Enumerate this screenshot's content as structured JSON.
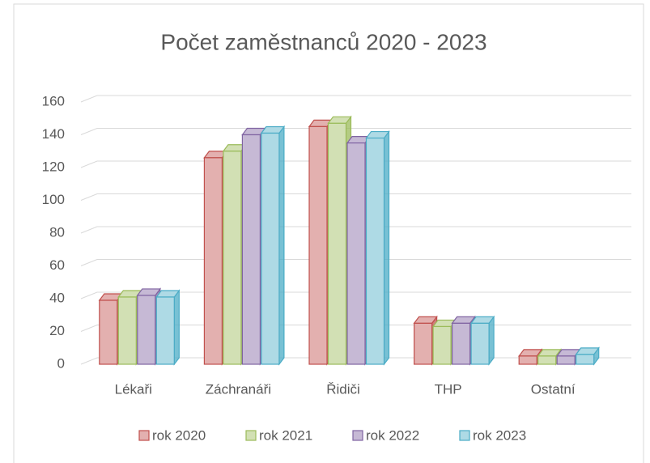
{
  "chart_data": {
    "type": "bar",
    "title": "Počet zaměstnanců 2020 - 2023",
    "categories": [
      "Lékaři",
      "Záchranáři",
      "Řidiči",
      "THP",
      "Ostatní"
    ],
    "series": [
      {
        "name": "rok 2020",
        "color": "#c0504d",
        "values": [
          39,
          126,
          145,
          25,
          5
        ]
      },
      {
        "name": "rok 2021",
        "color": "#9bbb59",
        "values": [
          41,
          130,
          147,
          23,
          5
        ]
      },
      {
        "name": "rok 2022",
        "color": "#8064a2",
        "values": [
          42,
          140,
          135,
          25,
          5
        ]
      },
      {
        "name": "rok 2023",
        "color": "#4bacc6",
        "values": [
          41,
          141,
          138,
          25,
          6
        ]
      }
    ],
    "ylim": [
      0,
      160
    ],
    "yticks": [
      0,
      20,
      40,
      60,
      80,
      100,
      120,
      140,
      160
    ],
    "grid": true,
    "legend": "bottom"
  }
}
